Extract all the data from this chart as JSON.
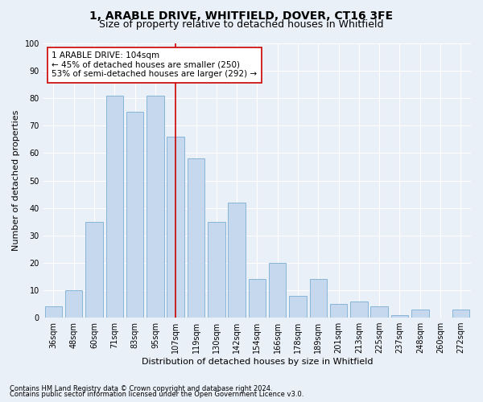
{
  "title_line1": "1, ARABLE DRIVE, WHITFIELD, DOVER, CT16 3FE",
  "title_line2": "Size of property relative to detached houses in Whitfield",
  "xlabel": "Distribution of detached houses by size in Whitfield",
  "ylabel": "Number of detached properties",
  "footnote1": "Contains HM Land Registry data © Crown copyright and database right 2024.",
  "footnote2": "Contains public sector information licensed under the Open Government Licence v3.0.",
  "bar_labels": [
    "36sqm",
    "48sqm",
    "60sqm",
    "71sqm",
    "83sqm",
    "95sqm",
    "107sqm",
    "119sqm",
    "130sqm",
    "142sqm",
    "154sqm",
    "166sqm",
    "178sqm",
    "189sqm",
    "201sqm",
    "213sqm",
    "225sqm",
    "237sqm",
    "248sqm",
    "260sqm",
    "272sqm"
  ],
  "bar_values": [
    4,
    10,
    35,
    81,
    75,
    81,
    66,
    58,
    35,
    42,
    14,
    20,
    8,
    14,
    5,
    6,
    4,
    1,
    3,
    0,
    3
  ],
  "bar_color": "#c5d8ed",
  "bar_edge_color": "#7aadd4",
  "vline_x_index": 6,
  "vline_color": "#cc0000",
  "annotation_line1": "1 ARABLE DRIVE: 104sqm",
  "annotation_line2": "← 45% of detached houses are smaller (250)",
  "annotation_line3": "53% of semi-detached houses are larger (292) →",
  "annotation_box_color": "#ffffff",
  "annotation_box_edge_color": "#cc0000",
  "ylim": [
    0,
    100
  ],
  "yticks": [
    0,
    10,
    20,
    30,
    40,
    50,
    60,
    70,
    80,
    90,
    100
  ],
  "bg_color": "#eaf0f8",
  "plot_bg_color": "#eaf0f8",
  "grid_color": "#ffffff",
  "title_fontsize": 10,
  "subtitle_fontsize": 9,
  "axis_label_fontsize": 8,
  "tick_fontsize": 7,
  "annotation_fontsize": 7.5,
  "footnote_fontsize": 6
}
